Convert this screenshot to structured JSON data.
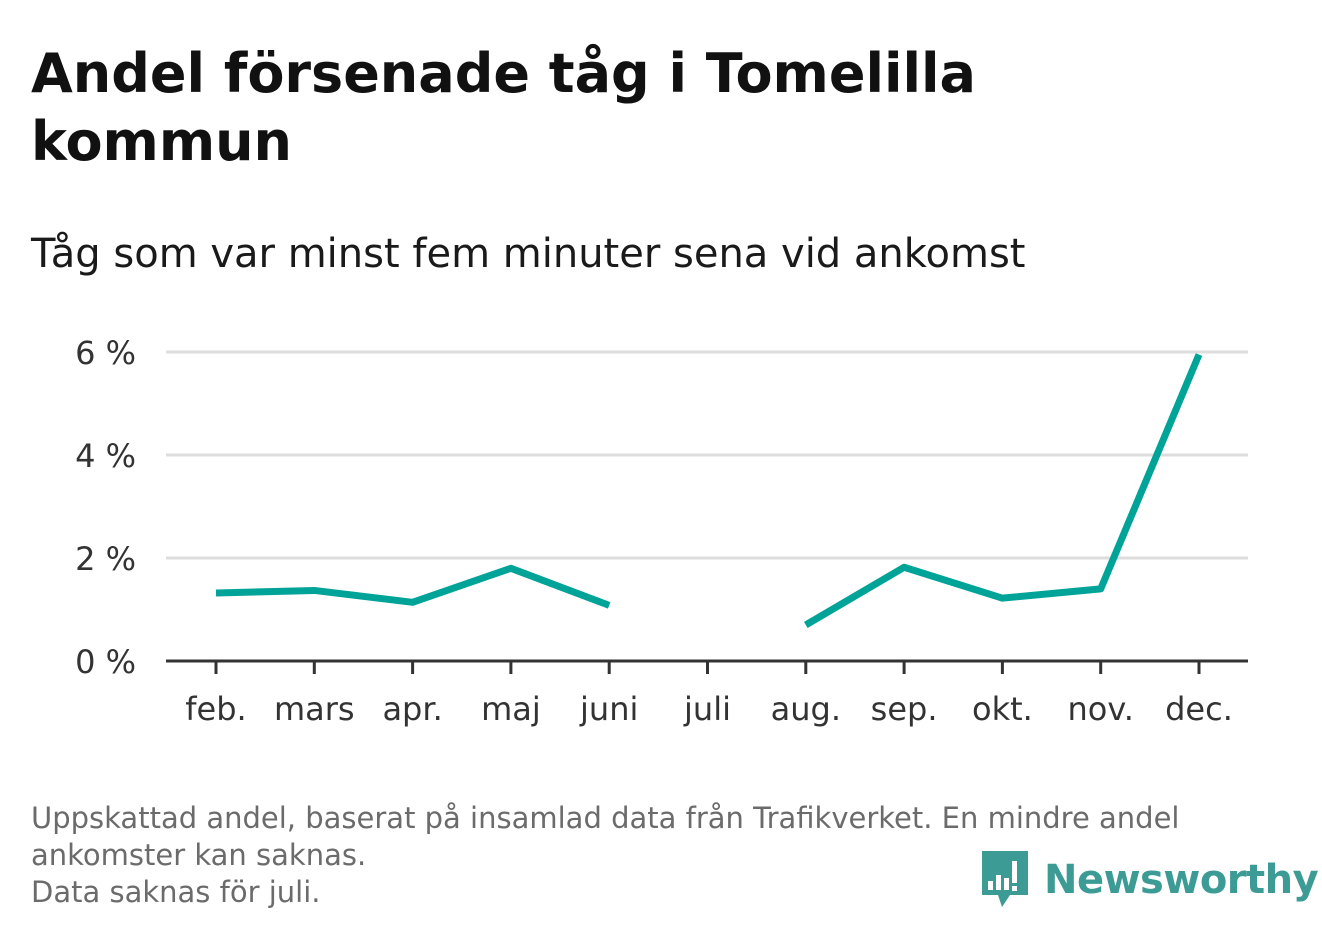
{
  "title": "Andel försenade tåg i Tomelilla kommun",
  "subtitle": "Tåg som var minst fem minuter sena vid ankomst",
  "footnote": {
    "line1": "Uppskattad andel, baserat på insamlad data från Trafikverket. En mindre andel",
    "line2": "ankomster kan saknas.",
    "line3": "Data saknas för juli."
  },
  "brand": {
    "name": "Newsworthy",
    "icon": "newsworthy-logo-icon",
    "color": "#3d9b95"
  },
  "colors": {
    "line": "#00a398",
    "grid": "#dddddd",
    "axis": "#333333",
    "text": "#333333"
  },
  "chart_data": {
    "type": "line",
    "categories": [
      "feb.",
      "mars",
      "apr.",
      "maj",
      "juni",
      "juli",
      "aug.",
      "sep.",
      "okt.",
      "nov.",
      "dec."
    ],
    "series": [
      {
        "values": [
          1.32,
          1.37,
          1.14,
          1.8,
          1.08,
          null,
          0.7,
          1.82,
          1.22,
          1.4,
          5.95
        ]
      }
    ],
    "yticks": [
      0,
      2,
      4,
      6
    ],
    "ytick_labels": [
      "0 %",
      "2 %",
      "4 %",
      "6 %"
    ],
    "ylim": [
      0,
      6
    ],
    "grid": true,
    "xlabel": "",
    "ylabel": ""
  }
}
